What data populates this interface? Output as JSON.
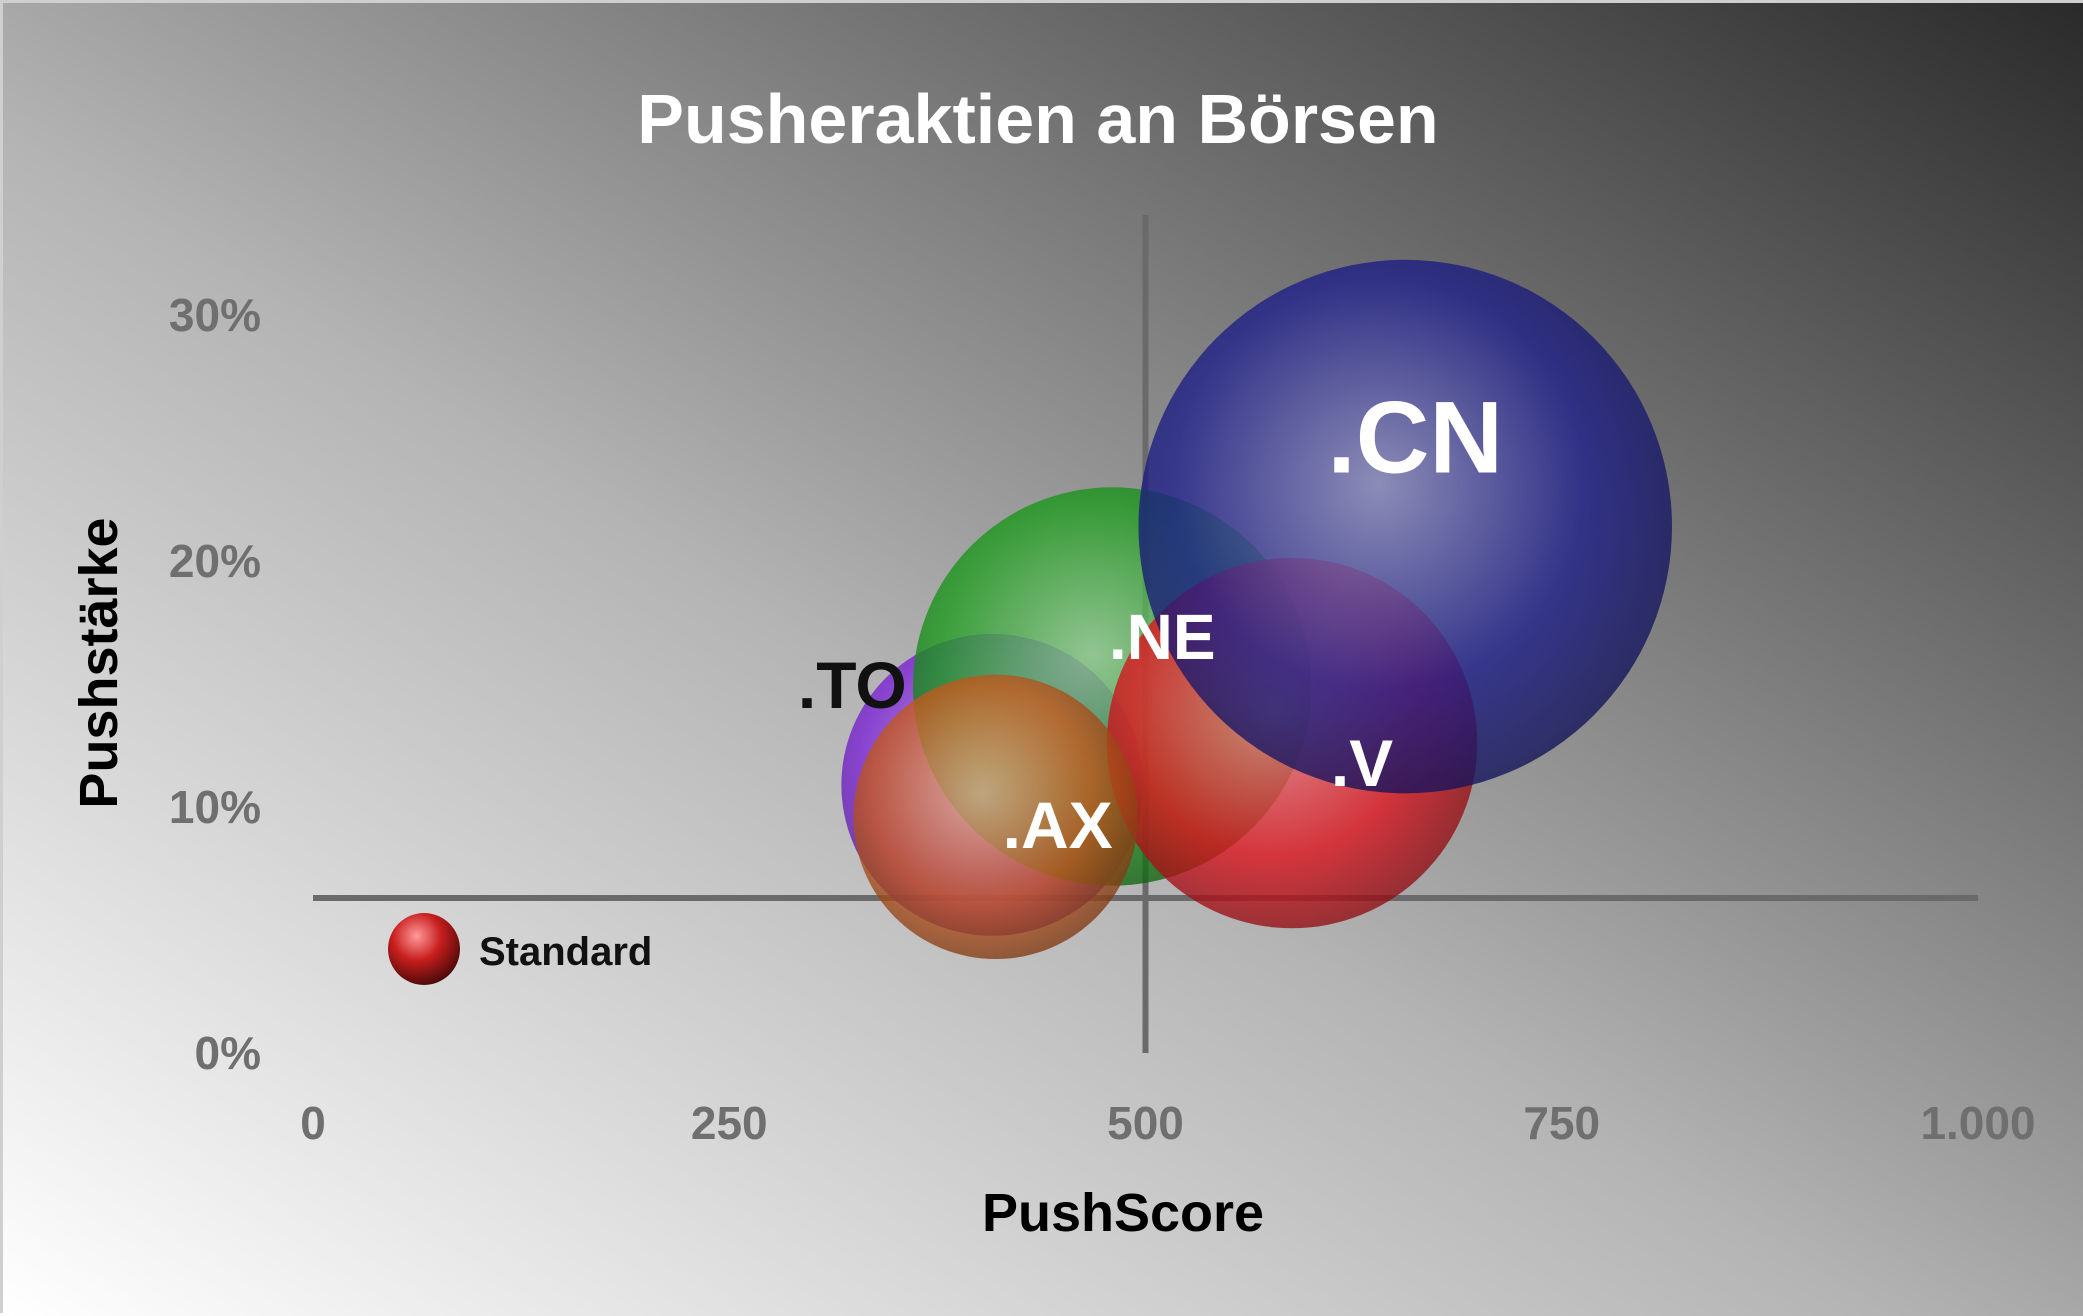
{
  "chart_data": {
    "type": "bubble",
    "title": "Pusheraktien an Börsen",
    "xlabel": "PushScore",
    "ylabel": "Pushstärke",
    "xlim": [
      0,
      1000
    ],
    "ylim": [
      0,
      0.3
    ],
    "x_ticks": [
      {
        "value": 0,
        "label": "0"
      },
      {
        "value": 250,
        "label": "250"
      },
      {
        "value": 500,
        "label": "500"
      },
      {
        "value": 750,
        "label": "750"
      },
      {
        "value": 1000,
        "label": "1.000"
      }
    ],
    "y_ticks": [
      {
        "value": 0,
        "label": "0%"
      },
      {
        "value": 0.1,
        "label": "10%"
      },
      {
        "value": 0.2,
        "label": "20%"
      },
      {
        "value": 0.3,
        "label": "30%"
      }
    ],
    "reference_lines": {
      "x": 500,
      "y": 0.063
    },
    "series": [
      {
        "name": ".TO",
        "x": 408,
        "y": 0.109,
        "size": 89,
        "color": "#7b22d6",
        "label_color": "dark"
      },
      {
        "name": ".NE",
        "x": 480,
        "y": 0.149,
        "size": 155,
        "color": "#1a9a1a",
        "label_color": "light"
      },
      {
        "name": ".V",
        "x": 588,
        "y": 0.126,
        "size": 134,
        "color": "#e0141e",
        "label_color": "light"
      },
      {
        "name": ".CN",
        "x": 656,
        "y": 0.214,
        "size": 278,
        "color": "#1e1e8c",
        "label_color": "light"
      },
      {
        "name": ".AX",
        "x": 410,
        "y": 0.096,
        "size": 79,
        "color": "#c75a1e",
        "label_color": "light"
      },
      {
        "name": "Standard",
        "x": 70,
        "y": 0.039,
        "size": 1.8,
        "color": "#c81e1e",
        "label_color": "dark"
      }
    ]
  }
}
